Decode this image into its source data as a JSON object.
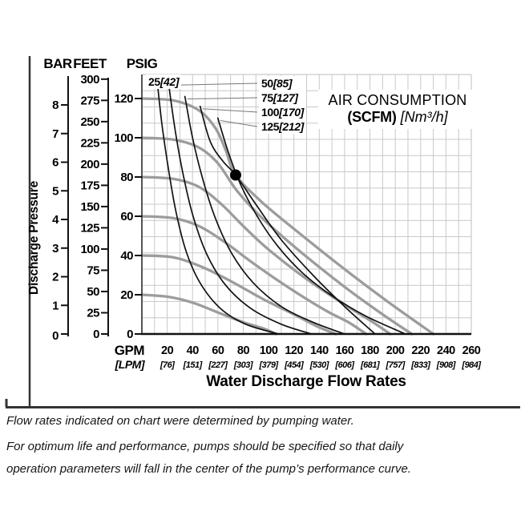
{
  "scales": {
    "bar_header": "BAR",
    "feet_header": "FEET",
    "psig_header": "PSIG"
  },
  "y_axis_title": "Discharge Pressure",
  "x_axis": {
    "gpm_label": "GPM",
    "lpm_label": "[LPM]",
    "title": "Water Discharge Flow Rates"
  },
  "air_box": {
    "line1": "AIR CONSUMPTION",
    "line2_bold": "(SCFM)",
    "line2_italic": "[Nm³/h]"
  },
  "footnotes": [
    "Flow rates indicated on chart were determined by pumping water.",
    "For optimum life and performance, pumps should be specified so that daily operation parameters will fall in the center of the pump’s performance curve."
  ],
  "colors": {
    "water_curve": "#9c9c9c",
    "air_curve": "#121212",
    "grid": "#c9c9c9",
    "frame": "#333333",
    "point": "#000000"
  },
  "chart_data": {
    "type": "line",
    "title": "Pump performance curve: discharge pressure vs. water discharge flow rate with air consumption curves",
    "x_unit_primary": "GPM",
    "x_unit_secondary": "LPM",
    "x_range_gpm": [
      0,
      260
    ],
    "y_range_psig": [
      0,
      132
    ],
    "grid": true,
    "x_ticks_gpm": [
      20,
      40,
      60,
      80,
      100,
      120,
      140,
      160,
      180,
      200,
      220,
      240,
      260
    ],
    "x_ticks_lpm": [
      "[76]",
      "[151]",
      "[227]",
      "[303]",
      "[379]",
      "[454]",
      "[530]",
      "[606]",
      "[681]",
      "[757]",
      "[833]",
      "[908]",
      "[984]"
    ],
    "y_ticks_psig": [
      0,
      20,
      40,
      60,
      80,
      100,
      120
    ],
    "y_ticks_feet": [
      0,
      25,
      50,
      75,
      100,
      125,
      150,
      175,
      200,
      225,
      250,
      275,
      300
    ],
    "y_ticks_bar": [
      0,
      1,
      2,
      3,
      4,
      5,
      6,
      7,
      8
    ],
    "origin_label": "0",
    "water_curves": [
      {
        "psig": 120,
        "points": [
          [
            0,
            120
          ],
          [
            25,
            119
          ],
          [
            45,
            114
          ],
          [
            58,
            105
          ],
          [
            66,
            94
          ],
          [
            74,
            81
          ],
          [
            95,
            67
          ],
          [
            125,
            51
          ],
          [
            160,
            33
          ],
          [
            195,
            16
          ],
          [
            230,
            0
          ]
        ]
      },
      {
        "psig": 100,
        "points": [
          [
            0,
            100
          ],
          [
            25,
            99
          ],
          [
            45,
            95
          ],
          [
            60,
            87
          ],
          [
            75,
            73
          ],
          [
            95,
            59
          ],
          [
            125,
            42
          ],
          [
            160,
            24
          ],
          [
            190,
            10
          ],
          [
            213,
            0
          ]
        ]
      },
      {
        "psig": 80,
        "points": [
          [
            0,
            80
          ],
          [
            25,
            79
          ],
          [
            45,
            75
          ],
          [
            63,
            66
          ],
          [
            80,
            55
          ],
          [
            100,
            43
          ],
          [
            130,
            28
          ],
          [
            160,
            15
          ],
          [
            180,
            7
          ],
          [
            196,
            0
          ]
        ]
      },
      {
        "psig": 60,
        "points": [
          [
            0,
            60
          ],
          [
            25,
            59
          ],
          [
            45,
            55
          ],
          [
            65,
            47
          ],
          [
            88,
            36
          ],
          [
            115,
            24
          ],
          [
            145,
            12
          ],
          [
            163,
            6
          ],
          [
            177,
            0
          ]
        ]
      },
      {
        "psig": 40,
        "points": [
          [
            0,
            40
          ],
          [
            25,
            39
          ],
          [
            48,
            34
          ],
          [
            70,
            27
          ],
          [
            95,
            18
          ],
          [
            120,
            10
          ],
          [
            138,
            4
          ],
          [
            153,
            0
          ]
        ]
      },
      {
        "psig": 20,
        "points": [
          [
            0,
            20
          ],
          [
            20,
            19
          ],
          [
            40,
            16
          ],
          [
            60,
            11
          ],
          [
            80,
            6
          ],
          [
            95,
            3
          ],
          [
            106,
            0
          ]
        ]
      }
    ],
    "air_curves": [
      {
        "scfm": "25",
        "nm3h": "[42]",
        "points": [
          [
            12,
            129
          ],
          [
            16,
            106
          ],
          [
            21,
            84
          ],
          [
            27,
            62
          ],
          [
            35,
            42
          ],
          [
            46,
            26
          ],
          [
            62,
            13
          ],
          [
            82,
            5
          ],
          [
            108,
            0
          ]
        ]
      },
      {
        "scfm": "50",
        "nm3h": "[85]",
        "points": [
          [
            21,
            128
          ],
          [
            26,
            105
          ],
          [
            32,
            83
          ],
          [
            40,
            61
          ],
          [
            51,
            41
          ],
          [
            66,
            25
          ],
          [
            86,
            13
          ],
          [
            110,
            5
          ],
          [
            134,
            0
          ]
        ]
      },
      {
        "scfm": "75",
        "nm3h": "[127]",
        "points": [
          [
            34,
            121
          ],
          [
            40,
            100
          ],
          [
            48,
            79
          ],
          [
            58,
            59
          ],
          [
            71,
            41
          ],
          [
            88,
            26
          ],
          [
            110,
            14
          ],
          [
            135,
            6
          ],
          [
            160,
            0
          ]
        ]
      },
      {
        "scfm": "100",
        "nm3h": "[170]",
        "points": [
          [
            46,
            116
          ],
          [
            54,
            98
          ],
          [
            64,
            88
          ],
          [
            74,
            81
          ],
          [
            90,
            66
          ],
          [
            110,
            48
          ],
          [
            135,
            30
          ],
          [
            160,
            14
          ],
          [
            184,
            0
          ]
        ]
      },
      {
        "scfm": "125",
        "nm3h": "[212]",
        "points": [
          [
            60,
            110
          ],
          [
            68,
            93
          ],
          [
            78,
            76
          ],
          [
            91,
            60
          ],
          [
            107,
            45
          ],
          [
            127,
            31
          ],
          [
            151,
            19
          ],
          [
            177,
            9
          ],
          [
            208,
            0
          ]
        ]
      }
    ],
    "operating_point": {
      "gpm": 74,
      "psig": 81
    }
  }
}
